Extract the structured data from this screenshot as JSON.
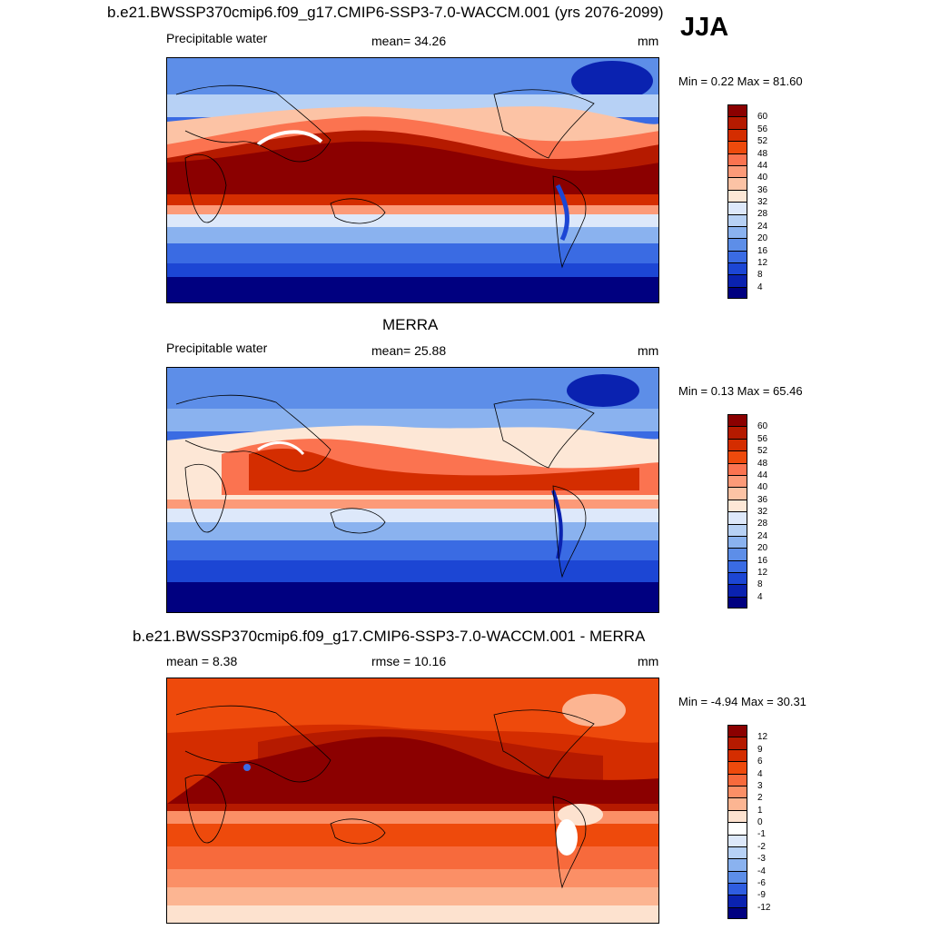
{
  "header": {
    "title": "b.e21.BWSSP370cmip6.f09_g17.CMIP6-SSP3-7.0-WACCM.001 (yrs 2076-2099)",
    "season": "JJA"
  },
  "panels": [
    {
      "id": "model",
      "title": "",
      "left_label": "Precipitable water",
      "center_label": "mean=  34.26",
      "units": "mm",
      "min_max": "Min =   0.22 Max =  81.60",
      "colorbar_labels": [
        "60",
        "56",
        "52",
        "48",
        "44",
        "40",
        "36",
        "32",
        "28",
        "24",
        "20",
        "16",
        "12",
        "8",
        "4"
      ]
    },
    {
      "id": "obs",
      "title": "MERRA",
      "left_label": "Precipitable water",
      "center_label": "mean=  25.88",
      "units": "mm",
      "min_max": "Min =   0.13 Max =  65.46",
      "colorbar_labels": [
        "60",
        "56",
        "52",
        "48",
        "44",
        "40",
        "36",
        "32",
        "28",
        "24",
        "20",
        "16",
        "12",
        "8",
        "4"
      ]
    },
    {
      "id": "diff",
      "title": "b.e21.BWSSP370cmip6.f09_g17.CMIP6-SSP3-7.0-WACCM.001 - MERRA",
      "left_label": "mean =   8.38",
      "center_label": "rmse =  10.16",
      "units": "mm",
      "min_max": "Min =  -4.94 Max =  30.31",
      "colorbar_labels": [
        "12",
        "9",
        "6",
        "4",
        "3",
        "2",
        "1",
        "0",
        "-1",
        "-2",
        "-3",
        "-4",
        "-6",
        "-9",
        "-12"
      ]
    }
  ],
  "colors": {
    "absolute_scale": [
      "#8b0000",
      "#b51a00",
      "#d42d00",
      "#ee4a0c",
      "#fb7350",
      "#fc9a78",
      "#fcc3a5",
      "#fde7d6",
      "#dde8fa",
      "#b7d1f5",
      "#8ab2ef",
      "#5d8ee8",
      "#3a6be3",
      "#1c46d4",
      "#0a22b0",
      "#000080"
    ],
    "diff_scale": [
      "#8b0000",
      "#b51a00",
      "#d42d00",
      "#ee4a0c",
      "#f76a3c",
      "#fb8f66",
      "#fcb592",
      "#fde2cf",
      "#ffffff",
      "#dde8fa",
      "#b7d1f5",
      "#8ab2ef",
      "#5d8ee8",
      "#2f5de0",
      "#0a22b0",
      "#000080"
    ]
  }
}
